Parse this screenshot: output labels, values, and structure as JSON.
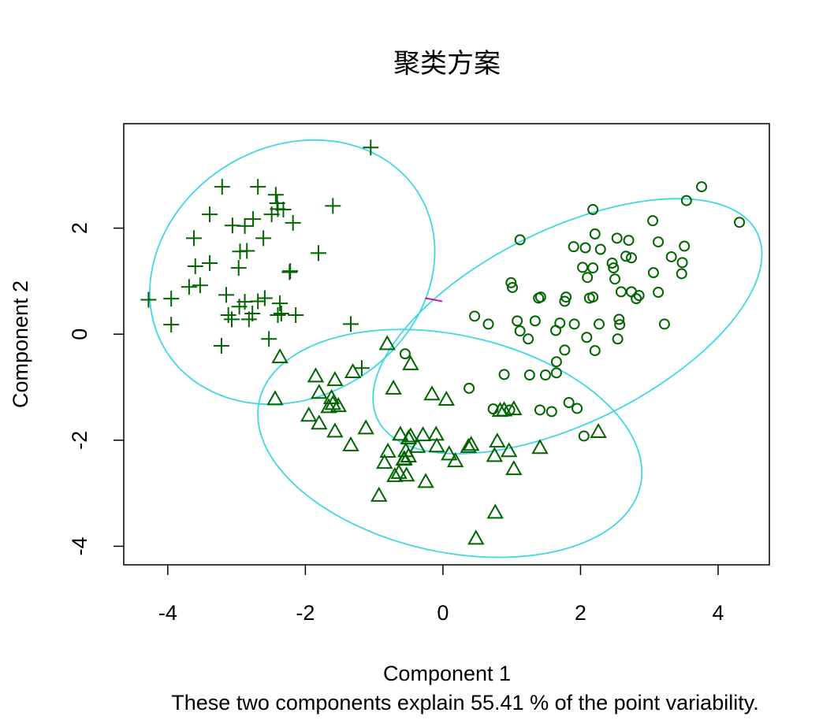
{
  "chart_data": {
    "type": "clusplot",
    "title": "聚类方案",
    "x_label": "Component 1",
    "y_label": "Component 2",
    "subtitle": "These two components explain 55.41 % of the point variability.",
    "xlim": [
      -4.64,
      4.745
    ],
    "ylim": [
      -4.35,
      3.97
    ],
    "xticks": [
      -4,
      -2,
      0,
      2,
      4
    ],
    "yticks": [
      -4,
      -2,
      0,
      2
    ],
    "series": [
      {
        "marker": "plus",
        "color": "#006400",
        "x": [
          -1.05,
          -3.21,
          -2.69,
          -2.43,
          -2.41,
          -3.39,
          -1.6,
          -2.4,
          -2.49,
          -2.32,
          -2.76,
          -2.88,
          -3.06,
          -2.18,
          -3.62,
          -2.61,
          -2.95,
          -2.85,
          -1.81,
          -3.6,
          -3.39,
          -2.97,
          -2.22,
          -2.23,
          -3.69,
          -3.53,
          -3.15,
          -2.59,
          -4.28,
          -3.95,
          -2.88,
          -2.69,
          -2.37,
          -2.96,
          -3.12,
          -2.77,
          -3.07,
          -2.4,
          -2.14,
          -2.35,
          -2.82,
          -3.95,
          -1.34,
          -2.53,
          -3.22,
          -1.18
        ],
        "y": [
          3.52,
          2.78,
          2.78,
          2.63,
          2.47,
          2.26,
          2.42,
          2.36,
          2.26,
          2.35,
          2.17,
          2.04,
          2.05,
          2.1,
          1.81,
          1.81,
          1.56,
          1.57,
          1.53,
          1.28,
          1.34,
          1.25,
          1.19,
          1.17,
          0.89,
          0.92,
          0.74,
          0.68,
          0.65,
          0.67,
          0.61,
          0.62,
          0.58,
          0.52,
          0.36,
          0.39,
          0.28,
          0.36,
          0.36,
          0.39,
          0.28,
          0.18,
          0.19,
          -0.09,
          -0.22,
          -0.64
        ]
      },
      {
        "marker": "triangle",
        "color": "#006400",
        "x": [
          -0.81,
          -2.37,
          -0.47,
          -1.31,
          -1.85,
          -1.57,
          -0.72,
          -1.8,
          -2.44,
          -1.62,
          -0.16,
          0.05,
          -1.6,
          -1.52,
          -1.66,
          -1.95,
          -1.8,
          -1.12,
          -1.57,
          -0.62,
          -0.1,
          -0.47,
          -0.29,
          -0.5,
          -1.34,
          -0.37,
          -0.09,
          0.41,
          0.37,
          0.79,
          1.41,
          -0.8,
          -0.54,
          0.09,
          0.18,
          0.75,
          0.96,
          -0.5,
          -0.56,
          -0.85,
          -0.57,
          -0.64,
          -0.53,
          -0.7,
          -0.25,
          1.03,
          -0.93,
          0.76,
          0.48,
          0.83,
          1.03,
          0.89,
          2.26
        ],
        "y": [
          -0.18,
          -0.43,
          -0.56,
          -0.71,
          -0.79,
          -0.86,
          -1.02,
          -1.1,
          -1.22,
          -1.2,
          -1.13,
          -1.23,
          -1.31,
          -1.35,
          -1.37,
          -1.53,
          -1.68,
          -1.77,
          -1.83,
          -1.89,
          -1.89,
          -1.92,
          -1.9,
          -1.96,
          -2.09,
          -2.12,
          -2.11,
          -2.08,
          -2.12,
          -2.02,
          -2.14,
          -2.21,
          -2.2,
          -2.26,
          -2.39,
          -2.29,
          -2.2,
          -2.3,
          -2.35,
          -2.42,
          -2.36,
          -2.61,
          -2.66,
          -2.67,
          -2.78,
          -2.54,
          -3.04,
          -3.36,
          -3.85,
          -1.44,
          -1.41,
          -1.43,
          -1.84
        ]
      },
      {
        "marker": "circle",
        "color": "#006400",
        "x": [
          3.76,
          4.31,
          3.54,
          3.05,
          2.18,
          1.12,
          2.21,
          2.53,
          2.7,
          3.13,
          3.51,
          1.9,
          2.07,
          2.29,
          2.66,
          2.74,
          3.32,
          2.03,
          2.18,
          2.46,
          2.48,
          3.48,
          3.47,
          3.06,
          2.1,
          2.5,
          0.99,
          1.01,
          2.59,
          2.74,
          2.85,
          2.81,
          3.13,
          1.42,
          1.39,
          1.79,
          1.77,
          2.18,
          2.13,
          0.46,
          0.66,
          1.08,
          1.34,
          1.7,
          1.91,
          2.56,
          2.57,
          2.27,
          3.22,
          1.12,
          1.64,
          1.24,
          2.09,
          2.54,
          1.77,
          2.21,
          -0.55,
          1.65,
          1.65,
          0.89,
          1.26,
          1.49,
          0.38,
          1.83,
          1.95,
          0.73,
          1.41,
          1.58,
          2.05,
          0.97
        ],
        "y": [
          2.78,
          2.11,
          2.52,
          2.14,
          2.35,
          1.78,
          1.89,
          1.81,
          1.77,
          1.74,
          1.66,
          1.65,
          1.63,
          1.6,
          1.47,
          1.44,
          1.46,
          1.26,
          1.25,
          1.34,
          1.25,
          1.35,
          1.14,
          1.16,
          1.07,
          1.04,
          0.97,
          0.88,
          0.8,
          0.8,
          0.73,
          0.67,
          0.79,
          0.7,
          0.68,
          0.7,
          0.62,
          0.7,
          0.68,
          0.34,
          0.19,
          0.25,
          0.25,
          0.21,
          0.19,
          0.28,
          0.18,
          0.19,
          0.19,
          0.06,
          0.07,
          -0.09,
          -0.06,
          -0.09,
          -0.3,
          -0.31,
          -0.37,
          -0.52,
          -0.73,
          -0.76,
          -0.77,
          -0.77,
          -1.02,
          -1.29,
          -1.4,
          -1.41,
          -1.43,
          -1.46,
          -1.92,
          -1.43
        ]
      }
    ],
    "ellipses": [
      {
        "cx": -2.19,
        "cy": 1.17,
        "a": 2.55,
        "b": 2.0,
        "angle": 70,
        "color": "#40d8e0"
      },
      {
        "cx": 1.81,
        "cy": 0.15,
        "a": 3.3,
        "b": 1.7,
        "angle": 37,
        "color": "#40d8e0"
      },
      {
        "cx": 0.1,
        "cy": -2.06,
        "a": 2.9,
        "b": 2.0,
        "angle": -22,
        "color": "#40d8e0"
      }
    ],
    "segments": [
      {
        "x": [
          -0.26,
          -0.01
        ],
        "y": [
          0.68,
          0.62
        ],
        "color": "#cc00cc"
      }
    ]
  }
}
